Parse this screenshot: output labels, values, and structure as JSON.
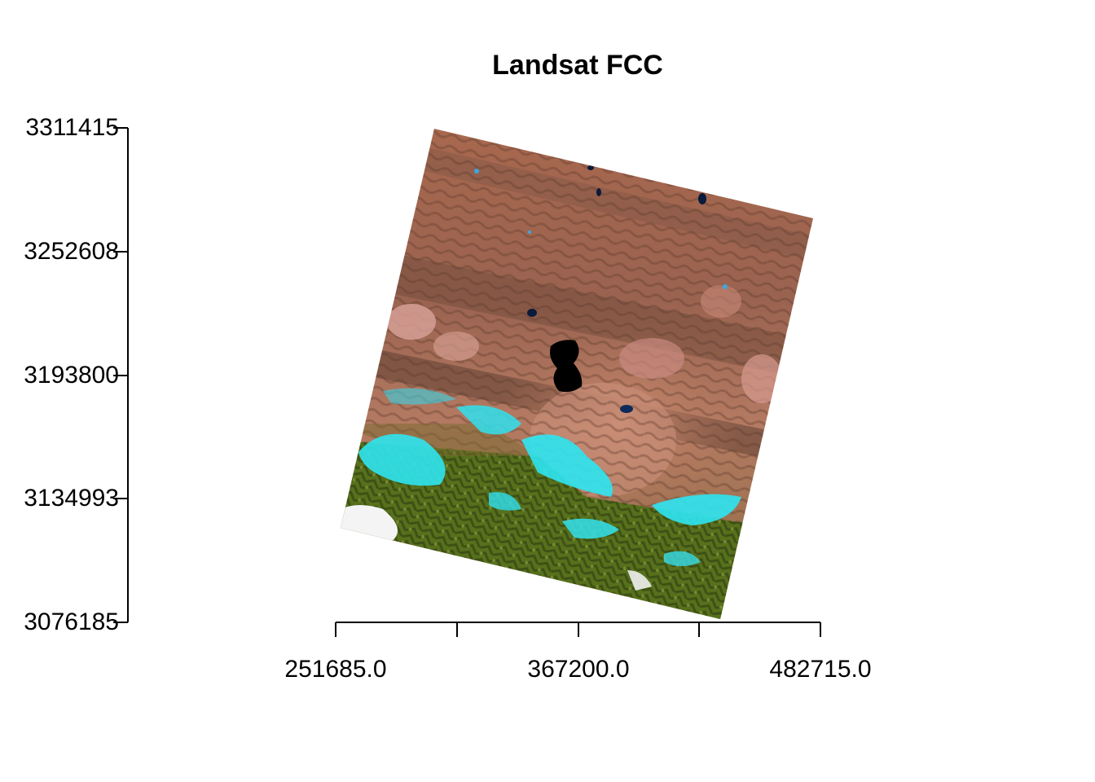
{
  "title": "Landsat FCC",
  "y_axis": {
    "ticks": [
      "3311415",
      "3252608",
      "3193800",
      "3134993",
      "3076185"
    ]
  },
  "x_axis": {
    "labels": [
      "251685.0",
      "367200.0",
      "482715.0"
    ],
    "minor_ticks": 2
  },
  "image": {
    "description": "Landsat false color composite raster",
    "colors": {
      "terrain": "#b8745a",
      "dark_terrain": "#6a4a3a",
      "snow_ice": "#2ee6f2",
      "vegetation": "#5e7a1e",
      "water": "#000000",
      "lake_small": "#0e2a5a",
      "white_cloud": "#f4f4f4"
    }
  }
}
